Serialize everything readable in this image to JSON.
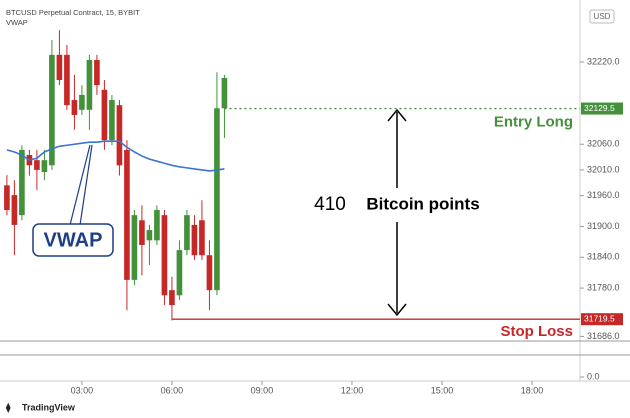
{
  "chart_data": {
    "type": "candlestick",
    "title": "BTCUSD Perpetual Contract, 15, BYBIT",
    "indicator_name": "VWAP",
    "currency": "USD",
    "x": [
      0.5,
      0.75,
      1,
      1.25,
      1.5,
      1.75,
      2,
      2.25,
      2.5,
      2.75,
      3,
      3.25,
      3.5,
      3.75,
      4,
      4.25,
      4.5,
      4.75,
      5,
      5.25,
      5.5,
      5.75,
      6,
      6.25,
      6.5,
      6.75,
      7,
      7.25,
      7.5,
      7.75
    ],
    "open": [
      31980,
      31961,
      31922,
      32039,
      32029,
      32006,
      32019,
      32234,
      32234,
      32146,
      32127,
      32127,
      32224,
      32166,
      32068,
      32136,
      32049,
      31796,
      31912,
      31873,
      31873,
      31922,
      31776,
      31766,
      31854,
      31903,
      31912,
      31844,
      31776,
      32130
    ],
    "high": [
      32000,
      31990,
      32058,
      32049,
      32049,
      32049,
      32263,
      32282,
      32253,
      32195,
      32175,
      32234,
      32234,
      32185,
      32156,
      32146,
      32068,
      31932,
      31941,
      31903,
      31941,
      31932,
      31802,
      31873,
      31932,
      31922,
      31951,
      31873,
      32200,
      32195
    ],
    "low": [
      31922,
      31844,
      31912,
      31999,
      31971,
      31990,
      32010,
      32175,
      32127,
      32088,
      32117,
      32088,
      32156,
      32049,
      32058,
      31999,
      31737,
      31786,
      31805,
      31825,
      31864,
      31747,
      31717,
      31757,
      31844,
      31835,
      31835,
      31737,
      31766,
      32072
    ],
    "close": [
      31932,
      31903,
      32049,
      32019,
      32010,
      32029,
      32234,
      32185,
      32136,
      32117,
      32156,
      32224,
      32175,
      32068,
      32146,
      32019,
      31796,
      31922,
      31864,
      31893,
      31932,
      31766,
      31747,
      31854,
      31922,
      31844,
      31844,
      31776,
      32130,
      32189
    ],
    "up_color": "#43913b",
    "down_color": "#c62828",
    "vwap": {
      "name": "VWAP",
      "color": "#3a73d1",
      "values": [
        32049,
        32045,
        32039,
        32029,
        32033,
        32045,
        32051,
        32056,
        32058,
        32060,
        32062,
        32064,
        32064,
        32066,
        32066,
        32066,
        32054,
        32045,
        32037,
        32031,
        32027,
        32023,
        32019,
        32016,
        32014,
        32012,
        32010,
        32008,
        32010,
        32012
      ]
    },
    "xlim": [
      0.27,
      19.6
    ],
    "xticks": [
      {
        "value": 3,
        "label": "03:00"
      },
      {
        "value": 6,
        "label": "06:00"
      },
      {
        "value": 9,
        "label": "09:00"
      },
      {
        "value": 12,
        "label": "12:00"
      },
      {
        "value": 15,
        "label": "15:00"
      },
      {
        "value": 18,
        "label": "18:00"
      }
    ],
    "ylim": [
      31679,
      32331
    ],
    "yticks": [
      {
        "value": 32220,
        "label": "32220.0"
      },
      {
        "value": 32060,
        "label": "32060.0"
      },
      {
        "value": 32010,
        "label": "32010.0"
      },
      {
        "value": 31960,
        "label": "31960.0"
      },
      {
        "value": 31900,
        "label": "31900.0"
      },
      {
        "value": 31840,
        "label": "31840.0"
      },
      {
        "value": 31780,
        "label": "31780.0"
      },
      {
        "value": 31686,
        "label": "31686.0"
      }
    ],
    "lower_pane_yticks": [
      {
        "value": 0,
        "label": "0.0"
      }
    ],
    "entry": {
      "label": "Entry Long",
      "price": 32129.5,
      "color": "#43913b"
    },
    "stop": {
      "label": "Stop Loss",
      "price": 31719.5,
      "color": "#c62828"
    },
    "distance": {
      "value": 410,
      "label": "Bitcoin points"
    },
    "footer": "TradingView"
  }
}
